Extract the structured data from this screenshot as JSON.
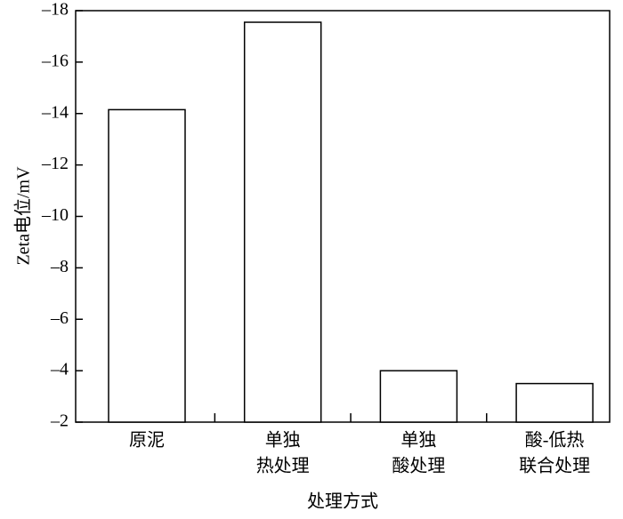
{
  "chart_data": {
    "type": "bar",
    "x_label": "处理方式",
    "y_label": "Zeta电位/mV",
    "categories": [
      [
        "原泥"
      ],
      [
        "单独",
        "热处理"
      ],
      [
        "单独",
        "酸处理"
      ],
      [
        "酸-低热",
        "联合处理"
      ]
    ],
    "values": [
      -14.15,
      -17.55,
      -4.0,
      -3.5
    ],
    "color": "#ffffff",
    "ylim": [
      -2,
      -18
    ],
    "yticks": [
      {
        "value": -2,
        "label": "–2"
      },
      {
        "value": -4,
        "label": "–4"
      },
      {
        "value": -6,
        "label": "–6"
      },
      {
        "value": -8,
        "label": "–8"
      },
      {
        "value": -10,
        "label": "–10"
      },
      {
        "value": -12,
        "label": "–12"
      },
      {
        "value": -14,
        "label": "–14"
      },
      {
        "value": -16,
        "label": "–16"
      },
      {
        "value": -18,
        "label": "–18"
      }
    ],
    "grid": false
  }
}
